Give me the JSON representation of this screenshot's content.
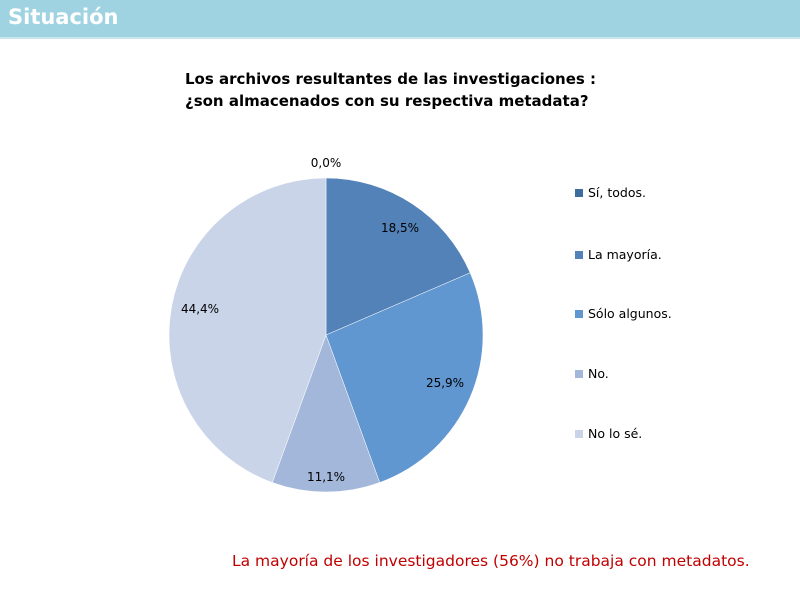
{
  "header": {
    "title": "Situación"
  },
  "footer": {
    "text": "La mayoría de los investigadores (56%) no trabaja con metadatos."
  },
  "chart_data": {
    "type": "pie",
    "title_lines": [
      "Los archivos resultantes de las investigaciones :",
      "¿son almacenados con su respectiva metadata?"
    ],
    "categories": [
      "Sí, todos.",
      "La mayoría.",
      "Sólo algunos.",
      "No.",
      "No lo sé."
    ],
    "values": [
      0.0,
      18.5,
      25.9,
      11.1,
      44.4
    ],
    "data_labels": [
      "0,0%",
      "18,5%",
      "25,9%",
      "11,1%",
      "44,4%"
    ],
    "colors": [
      "#3e6c9f",
      "#5282b8",
      "#6097d0",
      "#a3b7da",
      "#c9d4e8"
    ],
    "legend_position": "right"
  }
}
